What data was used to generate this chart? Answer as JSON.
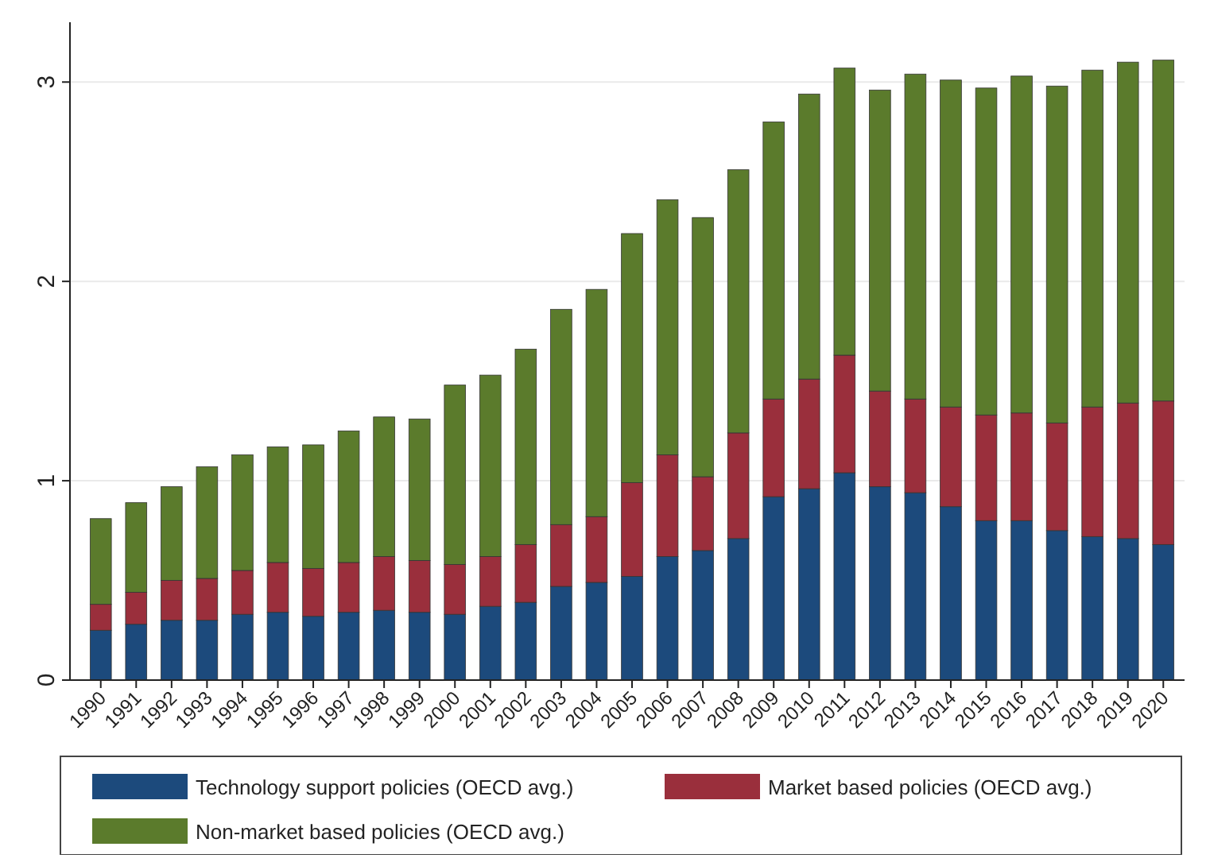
{
  "chart_data": {
    "type": "bar",
    "stacked": true,
    "categories": [
      "1990",
      "1991",
      "1992",
      "1993",
      "1994",
      "1995",
      "1996",
      "1997",
      "1998",
      "1999",
      "2000",
      "2001",
      "2002",
      "2003",
      "2004",
      "2005",
      "2006",
      "2007",
      "2008",
      "2009",
      "2010",
      "2011",
      "2012",
      "2013",
      "2014",
      "2015",
      "2016",
      "2017",
      "2018",
      "2019",
      "2020"
    ],
    "series": [
      {
        "name": "Technology support policies (OECD avg.)",
        "color": "#1c4a7c",
        "values": [
          0.25,
          0.28,
          0.3,
          0.3,
          0.33,
          0.34,
          0.32,
          0.34,
          0.35,
          0.34,
          0.33,
          0.37,
          0.39,
          0.47,
          0.49,
          0.52,
          0.62,
          0.65,
          0.71,
          0.92,
          0.96,
          1.04,
          0.97,
          0.94,
          0.87,
          0.8,
          0.8,
          0.75,
          0.72,
          0.71,
          0.68
        ]
      },
      {
        "name": "Market based policies (OECD avg.)",
        "color": "#9a2f3c",
        "values": [
          0.13,
          0.16,
          0.2,
          0.21,
          0.22,
          0.25,
          0.24,
          0.25,
          0.27,
          0.26,
          0.25,
          0.25,
          0.29,
          0.31,
          0.33,
          0.47,
          0.51,
          0.37,
          0.53,
          0.49,
          0.55,
          0.59,
          0.48,
          0.47,
          0.5,
          0.53,
          0.54,
          0.54,
          0.65,
          0.68,
          0.72
        ]
      },
      {
        "name": "Non-market based policies (OECD avg.)",
        "color": "#5b7b2c",
        "values": [
          0.43,
          0.45,
          0.47,
          0.56,
          0.58,
          0.58,
          0.62,
          0.66,
          0.7,
          0.71,
          0.9,
          0.91,
          0.98,
          1.08,
          1.14,
          1.25,
          1.28,
          1.3,
          1.32,
          1.39,
          1.43,
          1.44,
          1.51,
          1.63,
          1.64,
          1.64,
          1.69,
          1.69,
          1.69,
          1.71,
          1.71
        ]
      }
    ],
    "ylim": [
      0,
      3.3
    ],
    "yticks": [
      0,
      1,
      2,
      3
    ],
    "grid": "y",
    "legend": "bottom"
  }
}
